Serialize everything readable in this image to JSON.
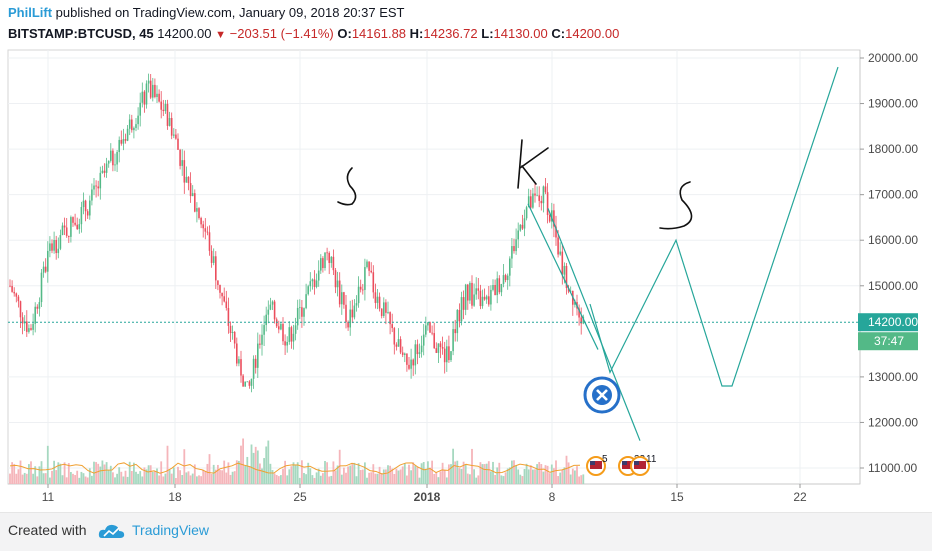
{
  "header": {
    "username": "PhilLift",
    "published": "published on TradingView.com, January 09, 2018 20:37 EST",
    "symbol": "BITSTAMP:BTCUSD, 45",
    "last": "14200.00",
    "change": "−203.51 (−1.41%)",
    "o_label": "O:",
    "o_val": "14161.88",
    "h_label": "H:",
    "h_val": "14236.72",
    "l_label": "L:",
    "l_val": "14130.00",
    "c_label": "C:",
    "c_val": "14200.00"
  },
  "footer": {
    "created_with": "Created with",
    "brand": "TradingView"
  },
  "colors": {
    "up": "#53b987",
    "down": "#eb4d5c",
    "drawing": "#26a69a",
    "price_line": "#26a69a",
    "grid": "#eef0f3",
    "volume_up": "#a6d8c0",
    "volume_down": "#f5b5ba"
  },
  "chart_data": {
    "type": "candlestick",
    "symbol": "BITSTAMP:BTCUSD",
    "interval": "45",
    "yaxis": {
      "ticks": [
        20000,
        19000,
        18000,
        17000,
        16000,
        15000,
        13000,
        12000,
        11000
      ],
      "tick_labels": [
        "20000.00",
        "19000.00",
        "18000.00",
        "17000.00",
        "16000.00",
        "15000.00",
        "13000.00",
        "12000.00",
        "11000.00"
      ],
      "range": [
        10600,
        20400
      ]
    },
    "xaxis": {
      "tick_labels": [
        "11",
        "18",
        "25",
        "2018",
        "8",
        "15",
        "22"
      ]
    },
    "last_price_label": "14200.00",
    "countdown_label": "37:47",
    "price_path_keypoints": [
      [
        "11",
        15000
      ],
      [
        "12",
        14000
      ],
      [
        "13",
        15800
      ],
      [
        "15",
        16800
      ],
      [
        "17",
        18500
      ],
      [
        "18",
        19300
      ],
      [
        "19",
        18700
      ],
      [
        "20",
        17200
      ],
      [
        "21",
        16000
      ],
      [
        "22",
        14200
      ],
      [
        "23",
        12600
      ],
      [
        "24",
        14600
      ],
      [
        "25",
        13800
      ],
      [
        "27",
        15800
      ],
      [
        "28",
        14200
      ],
      [
        "29",
        15300
      ],
      [
        "31",
        13200
      ],
      [
        "2018",
        14000
      ],
      [
        "2",
        13400
      ],
      [
        "3",
        14900
      ],
      [
        "4",
        14600
      ],
      [
        "5",
        15300
      ],
      [
        "6",
        16700
      ],
      [
        "7",
        17000
      ],
      [
        "8",
        15200
      ],
      [
        "9",
        14200
      ]
    ],
    "drawn_projection": [
      [
        16600,
        0
      ],
      [
        12900,
        0
      ],
      [
        16000,
        0
      ],
      [
        12800,
        0
      ],
      [
        19800,
        0
      ]
    ],
    "annotations": [
      "S",
      "K",
      "S"
    ],
    "event_markers": [
      "5",
      "33",
      "11"
    ]
  }
}
